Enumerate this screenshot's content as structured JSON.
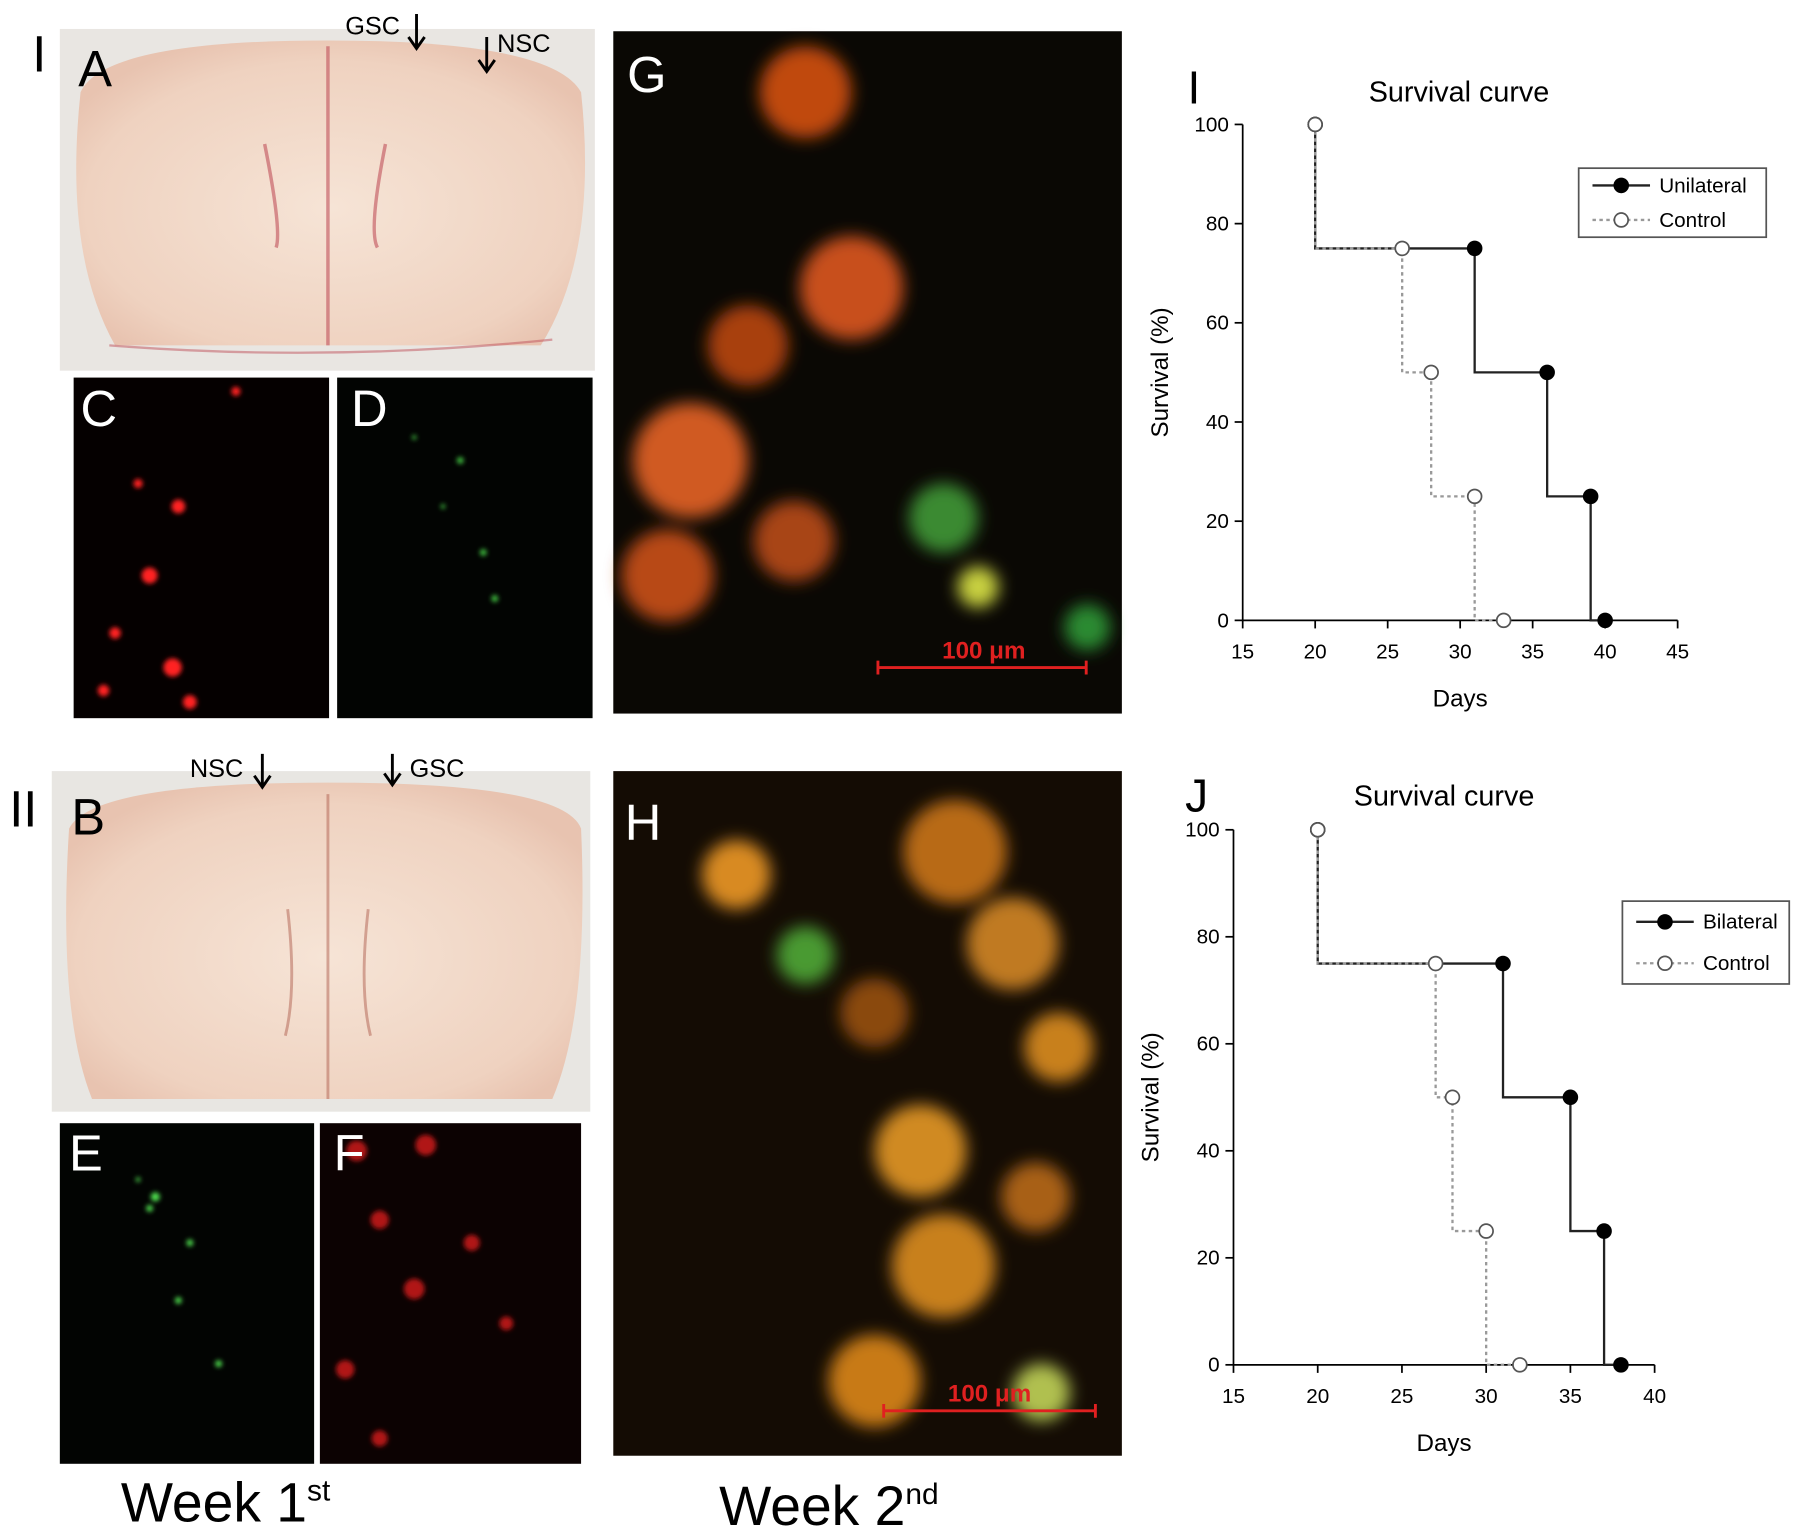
{
  "figure": {
    "rows": [
      "I",
      "II"
    ],
    "panels": [
      "A",
      "B",
      "C",
      "D",
      "E",
      "F",
      "G",
      "H"
    ],
    "arrows_top": [
      "GSC",
      "NSC"
    ],
    "arrows_bottom": [
      "NSC",
      "GSC"
    ],
    "scale_bar": "100 μm",
    "weeks": [
      {
        "text": "Week 1",
        "sup": "st"
      },
      {
        "text": "Week 2",
        "sup": "nd"
      }
    ]
  },
  "chart_data": [
    {
      "type": "step",
      "panel_label": "I",
      "title": "Survival curve",
      "x_label": "Days",
      "y_label": "Survival (%)",
      "xlim": [
        15,
        45
      ],
      "xticks": [
        15,
        20,
        25,
        30,
        35,
        40,
        45
      ],
      "ylim": [
        0,
        100
      ],
      "yticks": [
        0,
        20,
        40,
        60,
        80,
        100
      ],
      "legend": "upper right",
      "series": [
        {
          "name": "Unilateral",
          "color": "#222222",
          "line": "solid",
          "marker": "filled",
          "x": [
            20,
            31,
            36,
            39,
            40
          ],
          "values": [
            100,
            75,
            50,
            25,
            0
          ]
        },
        {
          "name": "Control",
          "color": "#999999",
          "line": "dotted",
          "marker": "open",
          "x": [
            20,
            26,
            28,
            31,
            33
          ],
          "values": [
            100,
            75,
            50,
            25,
            0
          ]
        }
      ]
    },
    {
      "type": "step",
      "panel_label": "J",
      "title": "Survival curve",
      "x_label": "Days",
      "y_label": "Survival (%)",
      "xlim": [
        15,
        40
      ],
      "xticks": [
        15,
        20,
        25,
        30,
        35,
        40
      ],
      "ylim": [
        0,
        100
      ],
      "yticks": [
        0,
        20,
        40,
        60,
        80,
        100
      ],
      "legend": "upper right",
      "series": [
        {
          "name": "Bilateral",
          "color": "#222222",
          "line": "solid",
          "marker": "filled",
          "x": [
            20,
            31,
            35,
            37,
            38
          ],
          "values": [
            100,
            75,
            50,
            25,
            0
          ]
        },
        {
          "name": "Control",
          "color": "#999999",
          "line": "dotted",
          "marker": "open",
          "x": [
            20,
            27,
            28,
            30,
            32
          ],
          "values": [
            100,
            75,
            50,
            25,
            0
          ]
        }
      ]
    }
  ]
}
